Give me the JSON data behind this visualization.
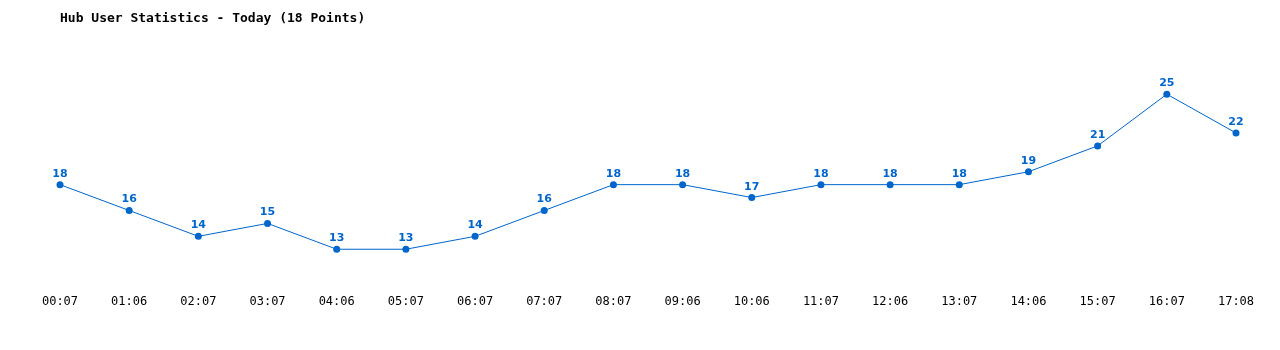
{
  "chart_data": {
    "type": "line",
    "title": "Hub User Statistics - Today (18 Points)",
    "categories": [
      "00:07",
      "01:06",
      "02:07",
      "03:07",
      "04:06",
      "05:07",
      "06:07",
      "07:07",
      "08:07",
      "09:06",
      "10:06",
      "11:07",
      "12:06",
      "13:07",
      "14:06",
      "15:07",
      "16:07",
      "17:08"
    ],
    "series": [
      {
        "color": "#0066cc",
        "values": [
          18,
          16,
          14,
          15,
          13,
          13,
          14,
          16,
          18,
          18,
          17,
          18,
          18,
          18,
          19,
          21,
          25,
          22
        ]
      }
    ],
    "data_labels": true,
    "marker": "circle",
    "line_style": "solid",
    "grid": false,
    "legend": false
  }
}
